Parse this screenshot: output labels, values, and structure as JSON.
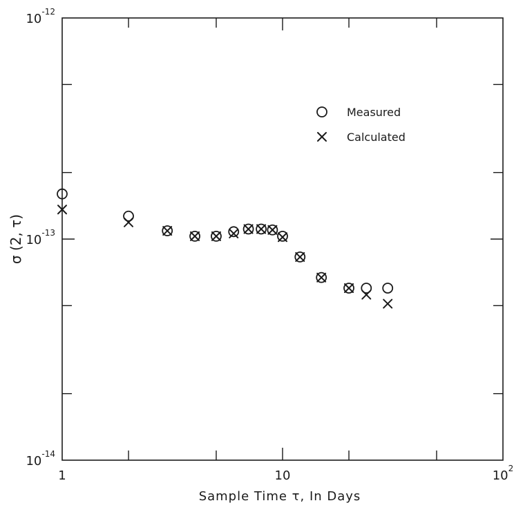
{
  "chart_data": {
    "type": "scatter",
    "title": "",
    "xlabel": "Sample Time τ, In Days",
    "ylabel": "σ (2, τ)",
    "x_scale": "log",
    "y_scale": "log",
    "xlim": [
      1,
      100
    ],
    "ylim": [
      1e-14,
      1e-12
    ],
    "grid": false,
    "legend_position": "upper-right",
    "x_ticks": [
      {
        "value": 1,
        "base": "1",
        "exp": ""
      },
      {
        "value": 10,
        "base": "10",
        "exp": ""
      },
      {
        "value": 100,
        "base": "10",
        "exp": "2"
      }
    ],
    "y_ticks": [
      {
        "value": 1e-14,
        "base": "10",
        "exp": "-14"
      },
      {
        "value": 1e-13,
        "base": "10",
        "exp": "-13"
      },
      {
        "value": 1e-12,
        "base": "10",
        "exp": "-12"
      }
    ],
    "series": [
      {
        "name": "Measured",
        "marker": "circle",
        "x": [
          1,
          2,
          3,
          4,
          5,
          6,
          7,
          8,
          9,
          10,
          12,
          15,
          20,
          24,
          30
        ],
        "y": [
          1.6e-13,
          1.27e-13,
          1.09e-13,
          1.03e-13,
          1.03e-13,
          1.08e-13,
          1.11e-13,
          1.11e-13,
          1.1e-13,
          1.03e-13,
          8.3e-14,
          6.7e-14,
          6e-14,
          6e-14,
          6e-14
        ]
      },
      {
        "name": "Calculated",
        "marker": "x",
        "x": [
          1,
          2,
          3,
          4,
          5,
          6,
          7,
          8,
          9,
          10,
          12,
          15,
          20,
          24,
          30
        ],
        "y": [
          1.36e-13,
          1.19e-13,
          1.09e-13,
          1.03e-13,
          1.03e-13,
          1.06e-13,
          1.11e-13,
          1.11e-13,
          1.1e-13,
          1.02e-13,
          8.3e-14,
          6.7e-14,
          6e-14,
          5.6e-14,
          5.1e-14
        ]
      }
    ]
  }
}
